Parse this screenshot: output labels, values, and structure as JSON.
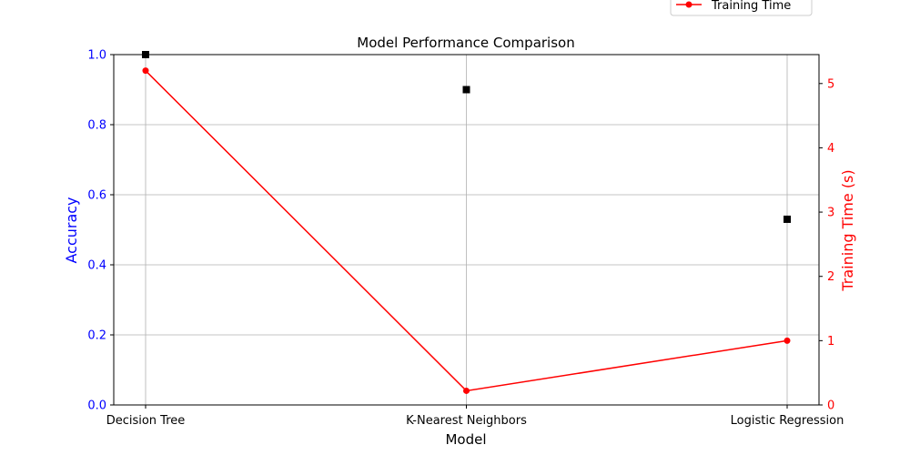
{
  "chart_data": {
    "type": "line",
    "title": "Model Performance Comparison",
    "xlabel": "Model",
    "categories": [
      "Decision Tree",
      "K-Nearest Neighbors",
      "Logistic Regression"
    ],
    "y_left": {
      "label": "Accuracy",
      "lim": [
        0,
        1
      ],
      "ticks": [
        "0.0",
        "0.2",
        "0.4",
        "0.6",
        "0.8",
        "1.0"
      ],
      "color": "#0000ff"
    },
    "y_right": {
      "label": "Training Time (s)",
      "lim": [
        0,
        5.45
      ],
      "ticks": [
        "0",
        "1",
        "2",
        "3",
        "4",
        "5"
      ],
      "color": "#ff0000"
    },
    "series": [
      {
        "name": "",
        "axis": "left",
        "style": "markers",
        "marker": "square",
        "color": "#000000",
        "values": [
          1.0,
          0.9,
          0.53
        ]
      },
      {
        "name": "Training Time",
        "axis": "right",
        "style": "line",
        "marker": "circle",
        "color": "#ff0000",
        "values": [
          5.2,
          0.22,
          1.0
        ]
      }
    ],
    "grid": true,
    "legend": {
      "placement": "top-right",
      "entries": [
        "Training Time"
      ]
    }
  }
}
